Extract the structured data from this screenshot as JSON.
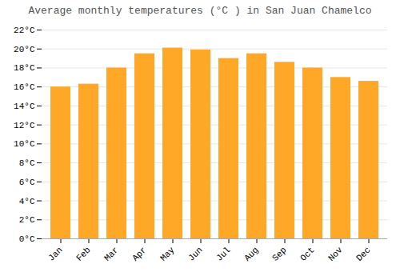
{
  "chart_data": {
    "type": "bar",
    "title": "Average monthly temperatures (°C ) in San Juan Chamelco",
    "categories": [
      "Jan",
      "Feb",
      "Mar",
      "Apr",
      "May",
      "Jun",
      "Jul",
      "Aug",
      "Sep",
      "Oct",
      "Nov",
      "Dec"
    ],
    "values": [
      16.0,
      16.3,
      18.0,
      19.5,
      20.1,
      19.9,
      19.0,
      19.5,
      18.6,
      18.0,
      17.0,
      16.6
    ],
    "color": "#FFA726",
    "ylim": [
      0,
      22
    ],
    "yticks": [
      {
        "value": 0,
        "label": "0°C"
      },
      {
        "value": 2,
        "label": "2°C"
      },
      {
        "value": 4,
        "label": "4°C"
      },
      {
        "value": 6,
        "label": "6°C"
      },
      {
        "value": 8,
        "label": "8°C"
      },
      {
        "value": 10,
        "label": "10°C"
      },
      {
        "value": 12,
        "label": "12°C"
      },
      {
        "value": 14,
        "label": "14°C"
      },
      {
        "value": 16,
        "label": "16°C"
      },
      {
        "value": 18,
        "label": "18°C"
      },
      {
        "value": 20,
        "label": "20°C"
      },
      {
        "value": 22,
        "label": "22°C"
      }
    ],
    "grid": true
  }
}
